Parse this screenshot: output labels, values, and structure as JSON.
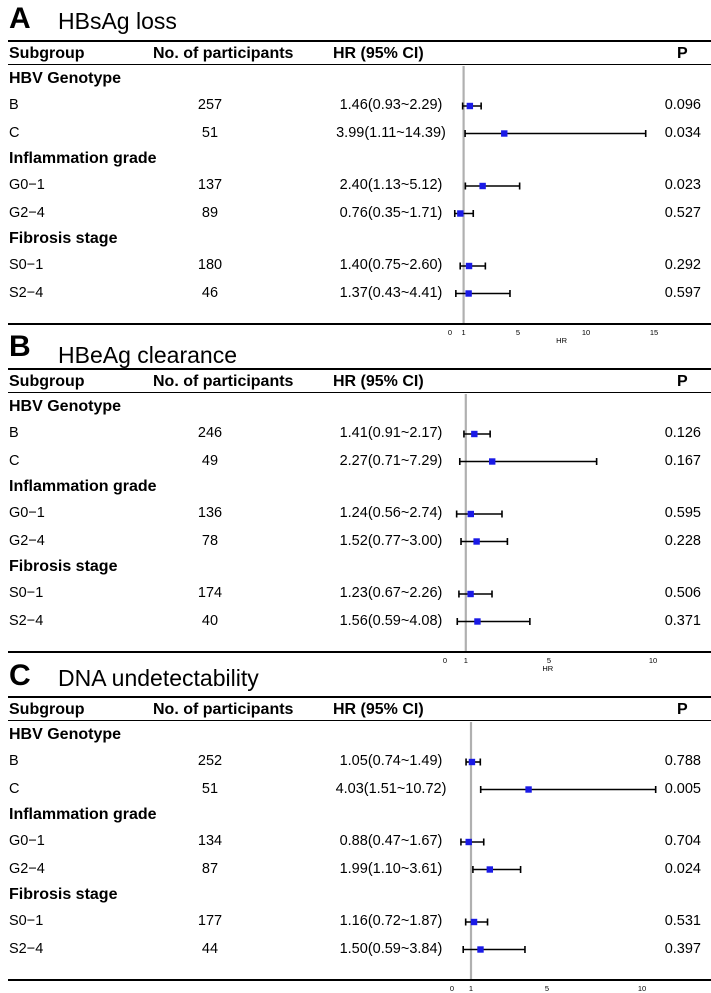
{
  "headers": {
    "subgroup": "Subgroup",
    "participants": "No. of participants",
    "hr": "HR (95% CI)",
    "p": "P"
  },
  "axis_label": "HR",
  "colors": {
    "point": "#1a1ae6",
    "refline": "#b0b0b0",
    "ink": "#000000"
  },
  "chart_data": [
    {
      "type": "forest",
      "letter": "A",
      "title": "HBsAg loss",
      "xticks": [
        0,
        1,
        5,
        10,
        15
      ],
      "xlim": [
        0,
        15
      ],
      "groups": [
        {
          "name": "HBV Genotype",
          "rows": [
            {
              "label": "B",
              "n": "257",
              "hr_text": "1.46(0.93~2.29)",
              "hr": 1.46,
              "lo": 0.93,
              "hi": 2.29,
              "p": "0.096"
            },
            {
              "label": "C",
              "n": "51",
              "hr_text": "3.99(1.11~14.39)",
              "hr": 3.99,
              "lo": 1.11,
              "hi": 14.39,
              "p": "0.034"
            }
          ]
        },
        {
          "name": "Inflammation grade",
          "rows": [
            {
              "label": "G0−1",
              "n": "137",
              "hr_text": "2.40(1.13~5.12)",
              "hr": 2.4,
              "lo": 1.13,
              "hi": 5.12,
              "p": "0.023"
            },
            {
              "label": "G2−4",
              "n": "89",
              "hr_text": "0.76(0.35~1.71)",
              "hr": 0.76,
              "lo": 0.35,
              "hi": 1.71,
              "p": "0.527"
            }
          ]
        },
        {
          "name": "Fibrosis stage",
          "rows": [
            {
              "label": "S0−1",
              "n": "180",
              "hr_text": "1.40(0.75~2.60)",
              "hr": 1.4,
              "lo": 0.75,
              "hi": 2.6,
              "p": "0.292"
            },
            {
              "label": "S2−4",
              "n": "46",
              "hr_text": "1.37(0.43~4.41)",
              "hr": 1.37,
              "lo": 0.43,
              "hi": 4.41,
              "p": "0.597"
            }
          ]
        }
      ]
    },
    {
      "type": "forest",
      "letter": "B",
      "title": "HBeAg clearance",
      "xticks": [
        0,
        1,
        5,
        10
      ],
      "xlim": [
        0,
        10
      ],
      "groups": [
        {
          "name": "HBV Genotype",
          "rows": [
            {
              "label": "B",
              "n": "246",
              "hr_text": "1.41(0.91~2.17)",
              "hr": 1.41,
              "lo": 0.91,
              "hi": 2.17,
              "p": "0.126"
            },
            {
              "label": "C",
              "n": "49",
              "hr_text": "2.27(0.71~7.29)",
              "hr": 2.27,
              "lo": 0.71,
              "hi": 7.29,
              "p": "0.167"
            }
          ]
        },
        {
          "name": "Inflammation grade",
          "rows": [
            {
              "label": "G0−1",
              "n": "136",
              "hr_text": "1.24(0.56~2.74)",
              "hr": 1.24,
              "lo": 0.56,
              "hi": 2.74,
              "p": "0.595"
            },
            {
              "label": "G2−4",
              "n": "78",
              "hr_text": "1.52(0.77~3.00)",
              "hr": 1.52,
              "lo": 0.77,
              "hi": 3.0,
              "p": "0.228"
            }
          ]
        },
        {
          "name": "Fibrosis stage",
          "rows": [
            {
              "label": "S0−1",
              "n": "174",
              "hr_text": "1.23(0.67~2.26)",
              "hr": 1.23,
              "lo": 0.67,
              "hi": 2.26,
              "p": "0.506"
            },
            {
              "label": "S2−4",
              "n": "40",
              "hr_text": "1.56(0.59~4.08)",
              "hr": 1.56,
              "lo": 0.59,
              "hi": 4.08,
              "p": "0.371"
            }
          ]
        }
      ]
    },
    {
      "type": "forest",
      "letter": "C",
      "title": "DNA undetectability",
      "xticks": [
        0,
        1,
        5,
        10
      ],
      "xlim": [
        0,
        10
      ],
      "groups": [
        {
          "name": "HBV Genotype",
          "rows": [
            {
              "label": "B",
              "n": "252",
              "hr_text": "1.05(0.74~1.49)",
              "hr": 1.05,
              "lo": 0.74,
              "hi": 1.49,
              "p": "0.788"
            },
            {
              "label": "C",
              "n": "51",
              "hr_text": "4.03(1.51~10.72)",
              "hr": 4.03,
              "lo": 1.51,
              "hi": 10.72,
              "p": "0.005"
            }
          ]
        },
        {
          "name": "Inflammation grade",
          "rows": [
            {
              "label": "G0−1",
              "n": "134",
              "hr_text": "0.88(0.47~1.67)",
              "hr": 0.88,
              "lo": 0.47,
              "hi": 1.67,
              "p": "0.704"
            },
            {
              "label": "G2−4",
              "n": "87",
              "hr_text": "1.99(1.10~3.61)",
              "hr": 1.99,
              "lo": 1.1,
              "hi": 3.61,
              "p": "0.024"
            }
          ]
        },
        {
          "name": "Fibrosis stage",
          "rows": [
            {
              "label": "S0−1",
              "n": "177",
              "hr_text": "1.16(0.72~1.87)",
              "hr": 1.16,
              "lo": 0.72,
              "hi": 1.87,
              "p": "0.531"
            },
            {
              "label": "S2−4",
              "n": "44",
              "hr_text": "1.50(0.59~3.84)",
              "hr": 1.5,
              "lo": 0.59,
              "hi": 3.84,
              "p": "0.397"
            }
          ]
        }
      ]
    }
  ]
}
